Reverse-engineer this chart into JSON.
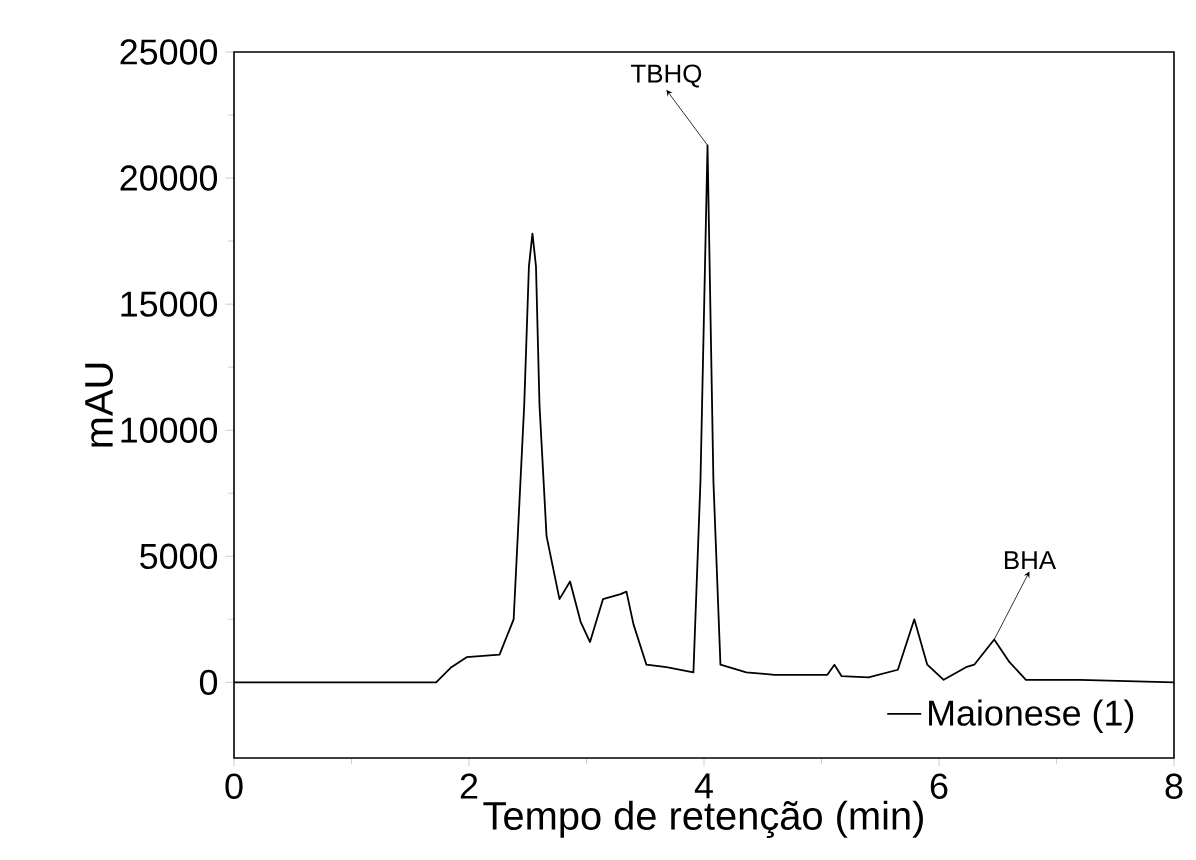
{
  "chart_data": {
    "type": "line",
    "xlabel": "Tempo de retenção (min)",
    "ylabel": "mAU",
    "xlim": [
      0,
      8
    ],
    "ylim": [
      -3000,
      25000
    ],
    "xticks": [
      0,
      2,
      4,
      6,
      8
    ],
    "yticks": [
      0,
      5000,
      10000,
      15000,
      20000,
      25000
    ],
    "grid": false,
    "legend": "bottom right",
    "marker": "none",
    "line_style": "solid",
    "series": [
      {
        "name": "Maionese (1)",
        "color": "#000000",
        "x": [
          0,
          1.0,
          1.72,
          1.85,
          1.98,
          2.26,
          2.38,
          2.47,
          2.51,
          2.54,
          2.57,
          2.6,
          2.66,
          2.77,
          2.86,
          2.95,
          3.03,
          3.14,
          3.29,
          3.34,
          3.4,
          3.51,
          3.68,
          3.91,
          3.97,
          4.03,
          4.08,
          4.14,
          4.36,
          4.6,
          4.9,
          5.05,
          5.11,
          5.17,
          5.4,
          5.65,
          5.79,
          5.9,
          6.04,
          6.23,
          6.3,
          6.47,
          6.6,
          6.74,
          7.2,
          8.0
        ],
        "values": [
          0,
          0,
          0,
          600,
          1000,
          1100,
          2500,
          11000,
          16500,
          17800,
          16500,
          11000,
          5800,
          3300,
          4000,
          2400,
          1600,
          3300,
          3500,
          3600,
          2300,
          700,
          600,
          400,
          8000,
          21300,
          8000,
          700,
          400,
          300,
          300,
          300,
          700,
          250,
          200,
          500,
          2500,
          700,
          100,
          600,
          700,
          1700,
          800,
          100,
          100,
          0
        ]
      }
    ],
    "annotations": [
      {
        "text": "TBHQ",
        "x": 4.03,
        "y": 21300
      },
      {
        "text": "BHA",
        "x": 6.47,
        "y": 1700
      }
    ]
  }
}
